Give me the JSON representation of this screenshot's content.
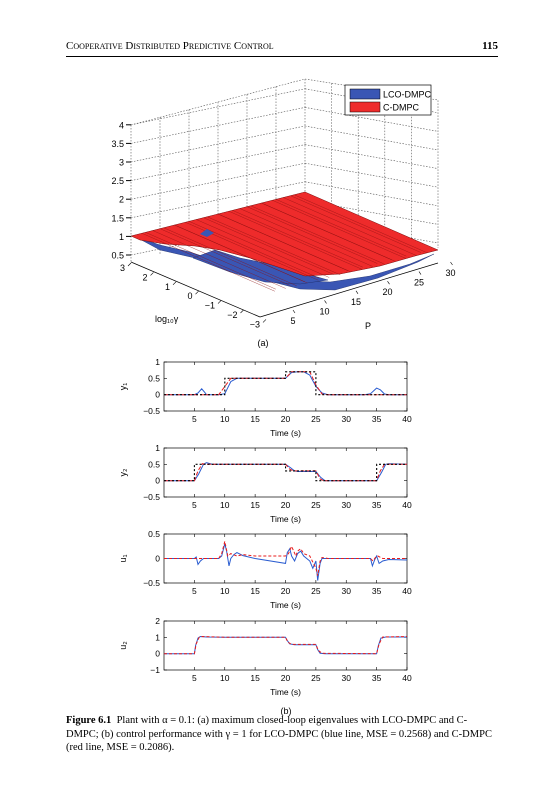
{
  "header": {
    "title": "Cooperative Distributed Predictive Control",
    "page_number": "115"
  },
  "figure_3d": {
    "panel_label": "(a)",
    "legend": [
      "LCO-DMPC",
      "C-DMPC"
    ],
    "legend_colors": [
      "#3a56b4",
      "#ee2b2b"
    ],
    "z_ticks": [
      "0.5",
      "1",
      "1.5",
      "2",
      "2.5",
      "3",
      "3.5",
      "4"
    ],
    "x_ticks": [
      "3",
      "2",
      "1",
      "0",
      "−1",
      "−2",
      "−3"
    ],
    "y_ticks": [
      "5",
      "10",
      "15",
      "20",
      "25",
      "30"
    ],
    "x_label": "log₁₀γ",
    "y_label": "P"
  },
  "panel_b_label": "(b)",
  "chart_data": [
    {
      "type": "line",
      "ylabel": "y₁",
      "xlabel": "Time (s)",
      "xlim": [
        0,
        40
      ],
      "ylim": [
        -0.5,
        1
      ],
      "xticks": [
        "5",
        "10",
        "15",
        "20",
        "25",
        "30",
        "35",
        "40"
      ],
      "yticks": [
        "−0.5",
        "0",
        "0.5",
        "1"
      ],
      "series": [
        {
          "color": "#2a5cd0",
          "dash": "solid",
          "x": [
            0,
            5,
            5.6,
            6.2,
            6.8,
            7,
            9,
            10,
            11,
            12,
            15,
            20,
            21,
            22,
            23,
            24,
            25,
            26,
            27,
            29,
            33,
            34,
            35,
            35.6,
            36.3,
            37,
            40
          ],
          "y": [
            0,
            0,
            0.05,
            0.18,
            0.05,
            0,
            0,
            0.03,
            0.4,
            0.5,
            0.5,
            0.5,
            0.68,
            0.7,
            0.7,
            0.6,
            0.25,
            0.05,
            0,
            0,
            0,
            0.03,
            0.2,
            0.15,
            0.02,
            0,
            0
          ]
        },
        {
          "color": "#e81c1c",
          "dash": "4,2",
          "x": [
            0,
            9,
            10,
            11,
            12,
            20,
            21,
            22,
            24,
            25,
            26,
            27,
            40
          ],
          "y": [
            0,
            0,
            0.25,
            0.5,
            0.5,
            0.5,
            0.7,
            0.7,
            0.7,
            0.3,
            0.02,
            0,
            0
          ]
        },
        {
          "color": "#000000",
          "dash": "2,2",
          "x": [
            0,
            10,
            10.01,
            20,
            20.01,
            25,
            25.01,
            40
          ],
          "y": [
            0,
            0,
            0.5,
            0.5,
            0.7,
            0.7,
            0,
            0
          ]
        }
      ]
    },
    {
      "type": "line",
      "ylabel": "y₂",
      "xlabel": "Time (s)",
      "xlim": [
        0,
        40
      ],
      "ylim": [
        -0.5,
        1
      ],
      "xticks": [
        "5",
        "10",
        "15",
        "20",
        "25",
        "30",
        "35",
        "40"
      ],
      "yticks": [
        "−0.5",
        "0",
        "0.5",
        "1"
      ],
      "series": [
        {
          "color": "#2a5cd0",
          "dash": "solid",
          "x": [
            0,
            5,
            5.7,
            6.5,
            7,
            8,
            10,
            15,
            20,
            20.8,
            21.5,
            22,
            24,
            25,
            25.8,
            26.5,
            27,
            30,
            35,
            35.8,
            36.5,
            37,
            40
          ],
          "y": [
            0,
            0,
            0.2,
            0.5,
            0.55,
            0.5,
            0.5,
            0.5,
            0.5,
            0.4,
            0.3,
            0.28,
            0.28,
            0.28,
            0.1,
            0,
            0,
            0,
            0,
            0.25,
            0.5,
            0.52,
            0.5
          ]
        },
        {
          "color": "#e81c1c",
          "dash": "4,2",
          "x": [
            0,
            5,
            5.6,
            6.3,
            7,
            20,
            20.7,
            21.3,
            25,
            25.7,
            26.3,
            35,
            35.6,
            36.3,
            37,
            40
          ],
          "y": [
            0,
            0,
            0.3,
            0.52,
            0.5,
            0.5,
            0.35,
            0.3,
            0.3,
            0.05,
            0,
            0,
            0.3,
            0.5,
            0.5,
            0.5
          ]
        },
        {
          "color": "#000000",
          "dash": "2,2",
          "x": [
            0,
            5,
            5.01,
            20,
            20.01,
            25,
            25.01,
            35,
            35.01,
            40
          ],
          "y": [
            0,
            0,
            0.5,
            0.5,
            0.3,
            0.3,
            0,
            0,
            0.5,
            0.5
          ]
        }
      ]
    },
    {
      "type": "line",
      "ylabel": "u₁",
      "xlabel": "Time (s)",
      "xlim": [
        0,
        40
      ],
      "ylim": [
        -0.5,
        0.5
      ],
      "xticks": [
        "5",
        "10",
        "15",
        "20",
        "25",
        "30",
        "35",
        "40"
      ],
      "yticks": [
        "−0.5",
        "0",
        "0.5"
      ],
      "series": [
        {
          "color": "#2a5cd0",
          "dash": "solid",
          "x": [
            0,
            5,
            5.3,
            5.6,
            6,
            6.5,
            7,
            8,
            9,
            9.5,
            10,
            10.3,
            10.7,
            11,
            11.5,
            12,
            13,
            15,
            20,
            20.3,
            20.7,
            21,
            21.5,
            22,
            22.5,
            23,
            24,
            24.5,
            25,
            25.3,
            25.7,
            26,
            27,
            29,
            34,
            34.3,
            34.7,
            35,
            35.4,
            36,
            37,
            40
          ],
          "y": [
            0,
            0,
            0.03,
            -0.12,
            -0.05,
            0,
            0,
            0,
            0,
            0.05,
            0.3,
            0.15,
            -0.15,
            0,
            0.08,
            0.12,
            0.06,
            0,
            -0.1,
            0.12,
            0.2,
            0.05,
            -0.05,
            0.1,
            0.15,
            0.05,
            -0.05,
            -0.2,
            -0.05,
            -0.45,
            -0.1,
            0,
            0,
            0,
            0,
            -0.15,
            -0.02,
            0.05,
            -0.1,
            -0.05,
            -0.02,
            -0.03
          ]
        },
        {
          "color": "#e81c1c",
          "dash": "3,2",
          "x": [
            0,
            9,
            9.5,
            10,
            10.5,
            11,
            12,
            13,
            15,
            20,
            20.5,
            21,
            21.7,
            22,
            22.5,
            23,
            24,
            25,
            25.3,
            25.7,
            26,
            27,
            34,
            34.4,
            34.8,
            35.2,
            36,
            40
          ],
          "y": [
            0,
            0,
            0.1,
            0.35,
            0.05,
            0.1,
            0.05,
            0.08,
            0.05,
            0.05,
            0.1,
            0.25,
            0.05,
            0.15,
            0.2,
            0.1,
            0.05,
            -0.2,
            -0.35,
            -0.05,
            0.02,
            0,
            0,
            -0.05,
            0.02,
            0.05,
            0,
            0
          ]
        }
      ]
    },
    {
      "type": "line",
      "ylabel": "u₂",
      "xlabel": "Time (s)",
      "xlim": [
        0,
        40
      ],
      "ylim": [
        -1,
        2
      ],
      "xticks": [
        "5",
        "10",
        "15",
        "20",
        "25",
        "30",
        "35",
        "40"
      ],
      "yticks": [
        "−1",
        "0",
        "1",
        "2"
      ],
      "series": [
        {
          "color": "#2a5cd0",
          "dash": "solid",
          "x": [
            0,
            5,
            5.2,
            5.6,
            6,
            7,
            10,
            15,
            20,
            20.3,
            20.7,
            21.5,
            25,
            25.3,
            25.7,
            26.5,
            35,
            35.3,
            35.7,
            36.5,
            40
          ],
          "y": [
            0,
            0,
            0.5,
            0.95,
            1.05,
            1.02,
            1.0,
            1.0,
            1.0,
            0.8,
            0.6,
            0.55,
            0.55,
            0.25,
            0.02,
            0,
            0,
            0.5,
            0.95,
            1.02,
            1.02
          ]
        },
        {
          "color": "#e81c1c",
          "dash": "3,2",
          "x": [
            0,
            5,
            5.3,
            5.8,
            6.3,
            10,
            20,
            20.4,
            21,
            25,
            25.4,
            26,
            35,
            35.4,
            36,
            40
          ],
          "y": [
            0,
            0,
            0.6,
            1.0,
            1.05,
            1.0,
            1.0,
            0.7,
            0.57,
            0.57,
            0.2,
            0.02,
            0,
            0.6,
            1.02,
            1.05
          ]
        }
      ]
    }
  ],
  "caption": {
    "figure_label": "Figure 6.1",
    "text": "Plant with α = 0.1: (a) maximum closed-loop eigenvalues with LCO-DMPC and C-DMPC; (b) control performance with γ = 1 for LCO-DMPC (blue line, MSE = 0.2568) and C-DMPC (red line, MSE = 0.2086)."
  }
}
